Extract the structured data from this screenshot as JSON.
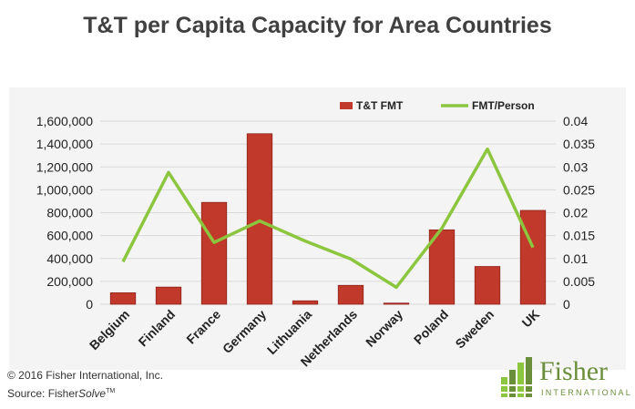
{
  "title": "T&T per Capita Capacity for Area Countries",
  "footer": {
    "copyright": "© 2016 Fisher International, Inc.",
    "source_prefix": "Source: Fisher",
    "source_solve": "Solve",
    "source_tm": "TM"
  },
  "logo": {
    "name": "Fisher",
    "subtitle": "INTERNATIONAL"
  },
  "colors": {
    "bar": "#c0392b",
    "bar_edge": "#8e2219",
    "line": "#8cc63f",
    "grid": "#d9d9d9"
  },
  "chart_data": {
    "type": "bar",
    "categories": [
      "Belgium",
      "Finland",
      "France",
      "Germany",
      "Lithuania",
      "Netherlands",
      "Norway",
      "Poland",
      "Sweden",
      "UK"
    ],
    "series": [
      {
        "name": "T&T FMT",
        "type": "bar",
        "axis": "left",
        "values": [
          100000,
          150000,
          890000,
          1490000,
          30000,
          165000,
          10000,
          650000,
          330000,
          820000
        ]
      },
      {
        "name": "FMT/Person",
        "type": "line",
        "axis": "right",
        "values": [
          0.0093,
          0.0288,
          0.0135,
          0.0182,
          0.0138,
          0.0099,
          0.0037,
          0.0166,
          0.0339,
          0.0124
        ]
      }
    ],
    "y_left": {
      "min": 0,
      "max": 1600000,
      "ticks": [
        "0",
        "200,000",
        "400,000",
        "600,000",
        "800,000",
        "1,000,000",
        "1,200,000",
        "1,400,000",
        "1,600,000"
      ]
    },
    "y_right": {
      "min": 0,
      "max": 0.04,
      "ticks": [
        "0",
        "0.005",
        "0.01",
        "0.015",
        "0.02",
        "0.025",
        "0.03",
        "0.035",
        "0.04"
      ]
    },
    "grid": true,
    "legend_position": "top-right"
  }
}
